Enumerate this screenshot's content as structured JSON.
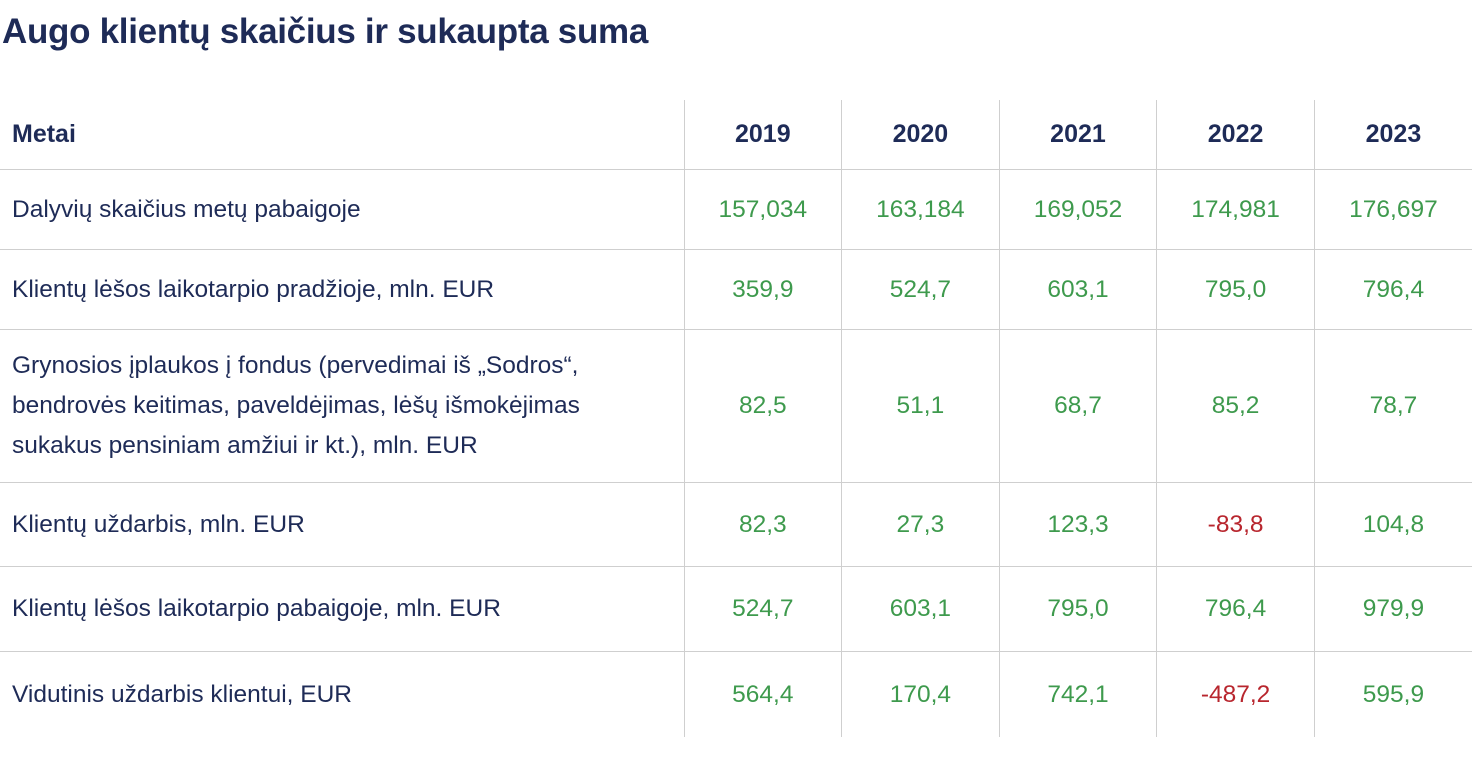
{
  "title": "Augo klientų skaičius ir sukaupta suma",
  "colors": {
    "heading": "#1e2b57",
    "positive": "#3e9a4d",
    "negative": "#b8262e",
    "grid": "#cfcfcf"
  },
  "chart_data": {
    "type": "table",
    "title": "Augo klientų skaičius ir sukaupta suma",
    "header_label": "Metai",
    "columns": [
      "2019",
      "2020",
      "2021",
      "2022",
      "2023"
    ],
    "rows": [
      {
        "label": "Dalyvių skaičius metų pabaigoje",
        "values": [
          "157,034",
          "163,184",
          "169,052",
          "174,981",
          "176,697"
        ],
        "negative": [
          false,
          false,
          false,
          false,
          false
        ]
      },
      {
        "label": "Klientų lėšos laikotarpio pradžioje, mln. EUR",
        "values": [
          "359,9",
          "524,7",
          "603,1",
          "795,0",
          "796,4"
        ],
        "negative": [
          false,
          false,
          false,
          false,
          false
        ]
      },
      {
        "label": "Grynosios įplaukos į fondus (pervedimai iš „Sodros“, bendrovės keitimas, paveldėjimas, lėšų išmokėjimas sukakus pensiniam amžiui ir kt.), mln. EUR",
        "values": [
          "82,5",
          "51,1",
          "68,7",
          "85,2",
          "78,7"
        ],
        "negative": [
          false,
          false,
          false,
          false,
          false
        ]
      },
      {
        "label": "Klientų uždarbis, mln. EUR",
        "values": [
          "82,3",
          "27,3",
          "123,3",
          "-83,8",
          "104,8"
        ],
        "negative": [
          false,
          false,
          false,
          true,
          false
        ]
      },
      {
        "label": "Klientų lėšos laikotarpio pabaigoje, mln. EUR",
        "values": [
          "524,7",
          "603,1",
          "795,0",
          "796,4",
          "979,9"
        ],
        "negative": [
          false,
          false,
          false,
          false,
          false
        ]
      },
      {
        "label": "Vidutinis uždarbis klientui, EUR",
        "values": [
          "564,4",
          "170,4",
          "742,1",
          "-487,2",
          "595,9"
        ],
        "negative": [
          false,
          false,
          false,
          true,
          false
        ]
      }
    ]
  }
}
